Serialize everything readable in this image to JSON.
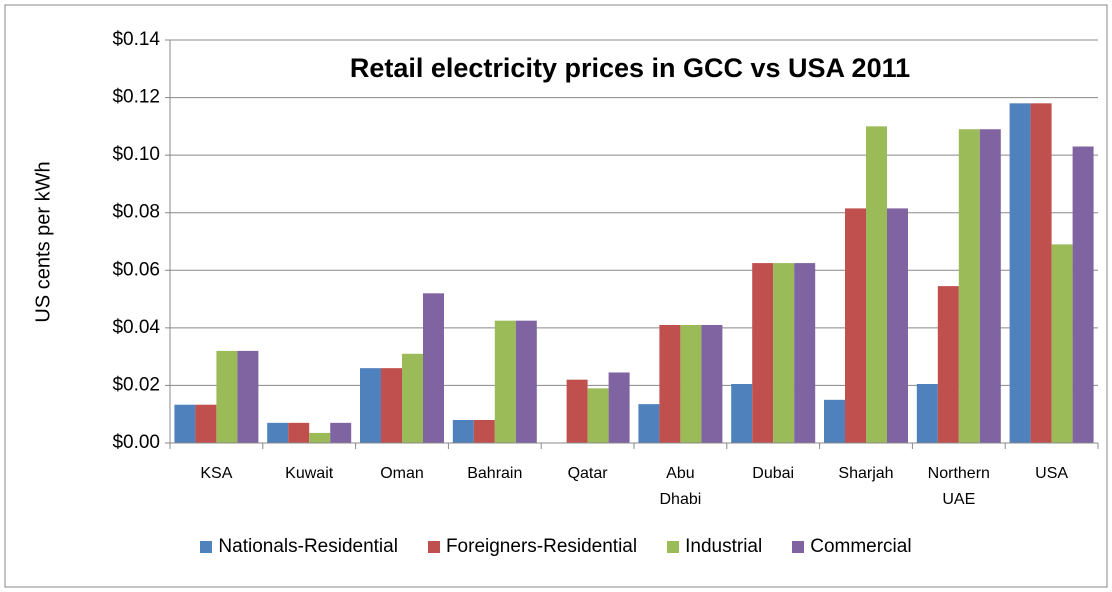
{
  "chart_data": {
    "type": "bar",
    "title": "Retail electricity prices in GCC vs USA 2011",
    "y_label": "US cents per kWh",
    "categories": [
      "KSA",
      "Kuwait",
      "Oman",
      "Bahrain",
      "Qatar",
      "Abu Dhabi",
      "Dubai",
      "Sharjah",
      "Northern UAE",
      "USA"
    ],
    "series": [
      {
        "name": "Nationals-Residential",
        "color": "#4f81bd",
        "values": [
          0.0133,
          0.007,
          0.026,
          0.008,
          null,
          0.0135,
          0.0205,
          0.015,
          0.0205,
          0.118
        ]
      },
      {
        "name": "Foreigners-Residential",
        "color": "#c0504d",
        "values": [
          0.0133,
          0.007,
          0.026,
          0.008,
          0.022,
          0.041,
          0.0625,
          0.0815,
          0.0545,
          0.118
        ]
      },
      {
        "name": "Industrial",
        "color": "#9bbb59",
        "values": [
          0.032,
          0.0035,
          0.031,
          0.0425,
          0.019,
          0.041,
          0.0625,
          0.11,
          0.109,
          0.069
        ]
      },
      {
        "name": "Commercial",
        "color": "#8064a2",
        "values": [
          0.032,
          0.007,
          0.052,
          0.0425,
          0.0245,
          0.041,
          0.0625,
          0.0815,
          0.109,
          0.103
        ]
      }
    ],
    "ylim": [
      0,
      0.14
    ],
    "yticks": [
      {
        "value": 0,
        "label": "$0.00"
      },
      {
        "value": 0.02,
        "label": "$0.02"
      },
      {
        "value": 0.04,
        "label": "$0.04"
      },
      {
        "value": 0.06,
        "label": "$0.06"
      },
      {
        "value": 0.08,
        "label": "$0.08"
      },
      {
        "value": 0.1,
        "label": "$0.10"
      },
      {
        "value": 0.12,
        "label": "$0.12"
      },
      {
        "value": 0.14,
        "label": "$0.14"
      }
    ],
    "grid": true,
    "legend": "bottom"
  }
}
